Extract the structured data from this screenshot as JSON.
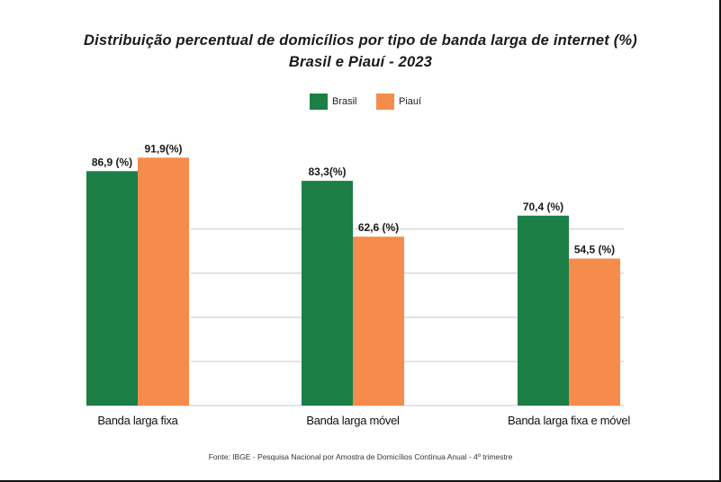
{
  "chart_data": {
    "type": "bar",
    "title": "Distribuição percentual de domicílios por tipo de banda larga de internet (%)",
    "subtitle": "Brasil e Piauí - 2023",
    "categories": [
      "Banda larga fixa",
      "Banda larga móvel",
      "Banda larga fixa e móvel"
    ],
    "series": [
      {
        "name": "Brasil",
        "color": "#1b7f46",
        "values": [
          86.9,
          83.3,
          70.4
        ],
        "labels": [
          "86,9 (%)",
          "83,3(%)",
          "70,4 (%)"
        ]
      },
      {
        "name": "Piauí",
        "color": "#f68c4c",
        "values": [
          91.9,
          62.6,
          54.5
        ],
        "labels": [
          "91,9(%)",
          "62,6 (%)",
          "54,5 (%)"
        ]
      }
    ],
    "ylim": [
      0,
      100
    ],
    "grid": true,
    "legend": "top-center",
    "xlabel": "",
    "ylabel": ""
  },
  "source": "Fonte: IBGE - Pesquisa Nacional por  Amostra de Domicílios Contínua Anual - 4º trimestre"
}
